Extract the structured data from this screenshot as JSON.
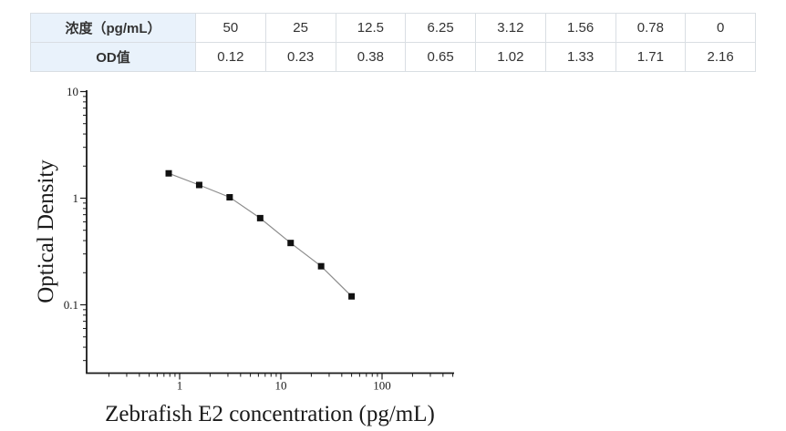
{
  "table": {
    "rows": [
      {
        "label": "浓度（pg/mL）",
        "values": [
          "50",
          "25",
          "12.5",
          "6.25",
          "3.12",
          "1.56",
          "0.78",
          "0"
        ]
      },
      {
        "label": "OD值",
        "values": [
          "0.12",
          "0.23",
          "0.38",
          "0.65",
          "1.02",
          "1.33",
          "1.71",
          "2.16"
        ]
      }
    ]
  },
  "chart_data": {
    "type": "scatter",
    "title": "",
    "xlabel": "Zebrafish E2 concentration (pg/mL)",
    "ylabel": "Optical Density",
    "x_scale": "log",
    "y_scale": "log",
    "x": [
      0.78,
      1.56,
      3.12,
      6.25,
      12.5,
      25,
      50
    ],
    "y": [
      1.71,
      1.33,
      1.02,
      0.65,
      0.38,
      0.23,
      0.12
    ],
    "x_ticks": [
      1,
      10,
      100
    ],
    "y_ticks": [
      10,
      1,
      0.1
    ],
    "xlim": [
      0.12,
      515
    ],
    "ylim": [
      0.0225,
      10
    ],
    "grid": false,
    "legend": false,
    "marker": "filled-square",
    "marker_color": "#111111",
    "line_color": "#8c8c8c"
  },
  "colors": {
    "table_header_bg": "#e9f2fb",
    "table_border": "#d9dee3",
    "table_text": "#333333",
    "axis_color": "#1a1a1a"
  }
}
